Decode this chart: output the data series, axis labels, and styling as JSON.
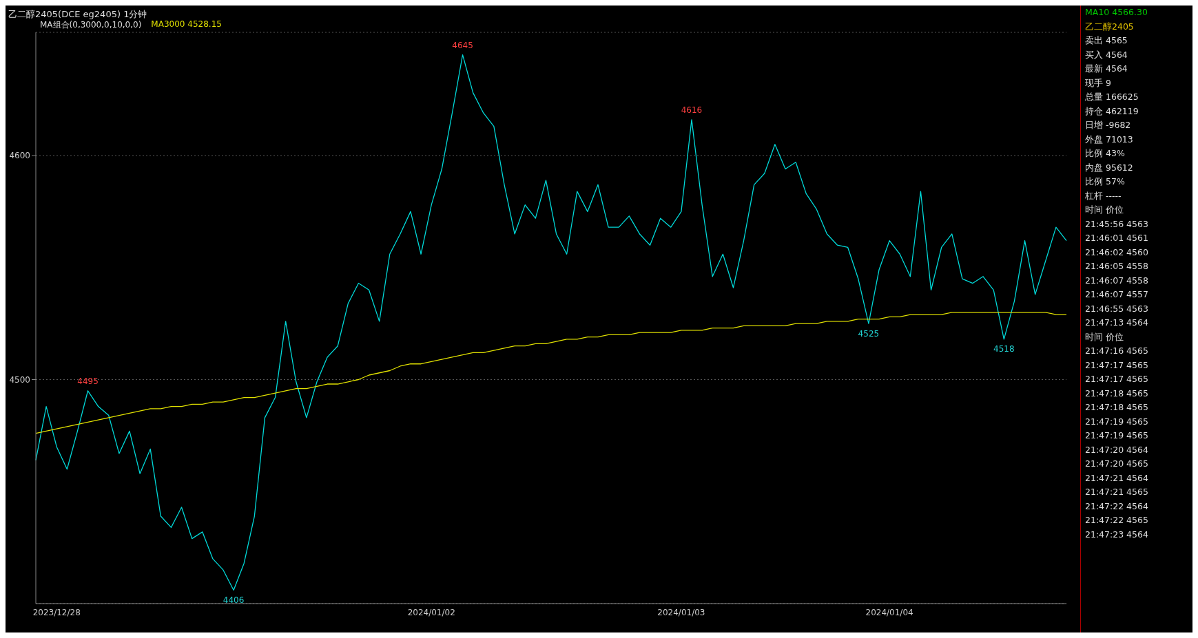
{
  "chart_data": {
    "type": "line",
    "title": "乙二醇2405(DCE eg2405) 1分钟",
    "subtitle": "MA组合(0,3000,0,10,0,0)",
    "categories": [
      null,
      null,
      "2023/12/28",
      null,
      null,
      null,
      null,
      null,
      null,
      null,
      null,
      null,
      null,
      null,
      null,
      null,
      null,
      null,
      null,
      null,
      null,
      null,
      null,
      null,
      null,
      null,
      null,
      null,
      null,
      null,
      null,
      null,
      null,
      null,
      null,
      null,
      null,
      null,
      "2024/01/02",
      null,
      null,
      null,
      null,
      null,
      null,
      null,
      null,
      null,
      null,
      null,
      null,
      null,
      null,
      null,
      null,
      null,
      null,
      null,
      null,
      null,
      null,
      null,
      "2024/01/03",
      null,
      null,
      null,
      null,
      null,
      null,
      null,
      null,
      null,
      null,
      null,
      null,
      null,
      null,
      null,
      null,
      null,
      null,
      null,
      "2024/01/04",
      null,
      null,
      null,
      null,
      null,
      null,
      null,
      null,
      null,
      null,
      null,
      null,
      null,
      null,
      null,
      null,
      null
    ],
    "ylim": [
      4400,
      4655
    ],
    "yticks": [
      4500,
      4600
    ],
    "grid": "y",
    "legend": "top left",
    "series": [
      {
        "color": "#00d8d8",
        "values": [
          4464,
          4488,
          4470,
          4460,
          4477,
          4495,
          4488,
          4484,
          4467,
          4477,
          4458,
          4469,
          4439,
          4434,
          4443,
          4429,
          4432,
          4420,
          4415,
          4406,
          4418,
          4439,
          4483,
          4492,
          4526,
          4499,
          4483,
          4499,
          4510,
          4515,
          4534,
          4543,
          4540,
          4526,
          4556,
          4565,
          4575,
          4556,
          4578,
          4594,
          4619,
          4645,
          4628,
          4619,
          4613,
          4587,
          4565,
          4578,
          4572,
          4589,
          4565,
          4556,
          4584,
          4575,
          4587,
          4568,
          4568,
          4573,
          4565,
          4560,
          4572,
          4568,
          4575,
          4616,
          4578,
          4546,
          4556,
          4541,
          4562,
          4587,
          4592,
          4605,
          4594,
          4597,
          4583,
          4576,
          4565,
          4560,
          4559,
          4545,
          4525,
          4549,
          4562,
          4556,
          4546,
          4584,
          4540,
          4559,
          4565,
          4545,
          4543,
          4546,
          4540,
          4518,
          4535,
          4562,
          4538,
          4553,
          4568,
          4562
        ]
      },
      {
        "name": "MA3000 4528.15",
        "color": "#e0e000",
        "values": [
          4476,
          4477,
          4478,
          4479,
          4480,
          4481,
          4482,
          4483,
          4484,
          4485,
          4486,
          4487,
          4487,
          4488,
          4488,
          4489,
          4489,
          4490,
          4490,
          4491,
          4492,
          4492,
          4493,
          4494,
          4495,
          4496,
          4496,
          4497,
          4498,
          4498,
          4499,
          4500,
          4502,
          4503,
          4504,
          4506,
          4507,
          4507,
          4508,
          4509,
          4510,
          4511,
          4512,
          4512,
          4513,
          4514,
          4515,
          4515,
          4516,
          4516,
          4517,
          4518,
          4518,
          4519,
          4519,
          4520,
          4520,
          4520,
          4521,
          4521,
          4521,
          4521,
          4522,
          4522,
          4522,
          4523,
          4523,
          4523,
          4524,
          4524,
          4524,
          4524,
          4524,
          4525,
          4525,
          4525,
          4526,
          4526,
          4526,
          4527,
          4527,
          4527,
          4528,
          4528,
          4529,
          4529,
          4529,
          4529,
          4530,
          4530,
          4530,
          4530,
          4530,
          4530,
          4530,
          4530,
          4530,
          4530,
          4529,
          4529
        ]
      }
    ],
    "annotations": [
      "4645",
      "4616",
      "4525",
      "4518",
      "4495",
      "4406",
      "MA10 4566.30",
      "乙二醇2405",
      "卖出 4565",
      "买入 4564",
      "最新 4564",
      "现手 9",
      "总量 166625",
      "持仓 462119",
      "日增 -9682",
      "外盘 71013",
      "比例 43%",
      "内盘 95612",
      "比例 57%",
      "杠杆 -----",
      "时间 价位",
      "21:45:56 4563",
      "21:46:01 4561",
      "21:46:02 4560",
      "21:46:05 4558",
      "21:46:07 4558",
      "21:46:07 4557",
      "21:46:55 4563",
      "21:47:13 4564",
      "时间 价位",
      "21:47:16 4565",
      "21:47:17 4565",
      "21:47:17 4565",
      "21:47:18 4565",
      "21:47:18 4565",
      "21:47:19 4565",
      "21:47:19 4565",
      "21:47:20 4564",
      "21:47:20 4565",
      "21:47:21 4564",
      "21:47:21 4565",
      "21:47:22 4564",
      "21:47:22 4565",
      "21:47:23 4564"
    ]
  }
}
